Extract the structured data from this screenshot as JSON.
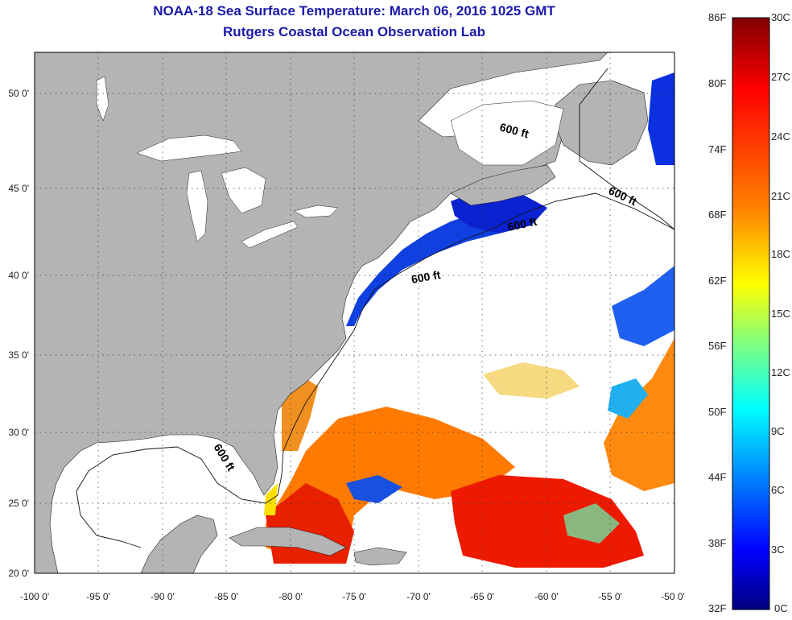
{
  "header": {
    "title": "NOAA-18 Sea Surface Temperature:  March 06, 2016 1025 GMT",
    "subtitle": "Rutgers Coastal Ocean Observation Lab"
  },
  "map": {
    "lon_ticks": [
      "-100 0'",
      "-95 0'",
      "-90 0'",
      "-85 0'",
      "-80 0'",
      "-75 0'",
      "-70 0'",
      "-65 0'",
      "-60 0'",
      "-55 0'",
      "-50 0'"
    ],
    "lat_ticks": [
      "20 0'",
      "25 0'",
      "30 0'",
      "35 0'",
      "40 0'",
      "45 0'",
      "50 0'"
    ],
    "lon_range": [
      -100,
      -50
    ],
    "lat_range": [
      20,
      52
    ],
    "contour_labels": [
      "600 ft",
      "600 ft",
      "600 ft",
      "600 ft",
      "600 ft"
    ],
    "land_color": "#b4b4b4",
    "cloud_color": "#ffffff"
  },
  "colorbar": {
    "fahrenheit_labels": [
      "86F",
      "80F",
      "74F",
      "68F",
      "62F",
      "56F",
      "50F",
      "44F",
      "38F",
      "32F"
    ],
    "celsius_labels": [
      "30C",
      "27C",
      "24C",
      "21C",
      "18C",
      "15C",
      "12C",
      "9C",
      "6C",
      "3C",
      "0C"
    ],
    "colors": [
      "#800000",
      "#ff0000",
      "#ff8000",
      "#ffff00",
      "#80ff80",
      "#00ffff",
      "#0080ff",
      "#0000ff",
      "#000080"
    ]
  }
}
